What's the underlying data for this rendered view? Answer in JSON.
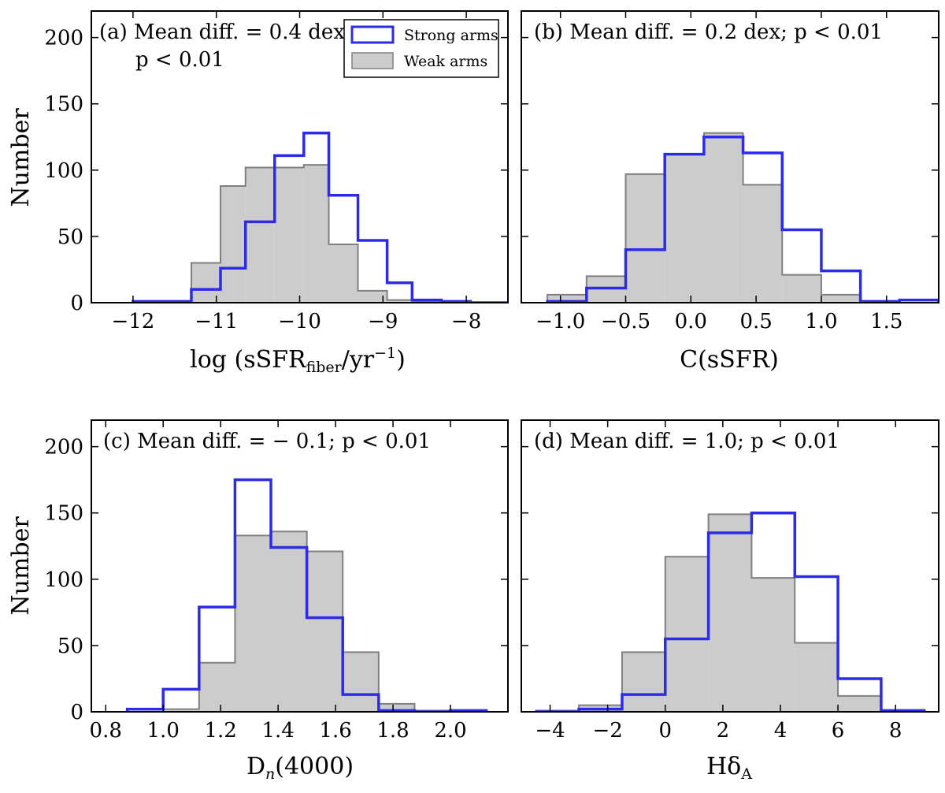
{
  "colors": {
    "strong": "#2b2be8",
    "weak_fill": "#cccccc",
    "weak_edge": "#808080",
    "axes": "#000000"
  },
  "legend": {
    "strong_label": "Strong arms",
    "weak_label": "Weak arms",
    "placement": "top-right of panel (a)"
  },
  "chart_data": [
    {
      "panel": "a",
      "type": "histogram",
      "annotation_line1": "(a) Mean diff. = 0.4 dex;",
      "annotation_line2": "p < 0.01",
      "xlabel": "log (sSFR_fiber / yr^-1)",
      "xlabel_main": "log (sSFR",
      "xlabel_sub": "fiber",
      "xlabel_tail": "/yr",
      "xlabel_sup": "−1",
      "xlabel_close": ")",
      "ylabel": "Number",
      "xlim": [
        -12.5,
        -7.5
      ],
      "ylim": [
        0,
        220
      ],
      "xticks": [
        -12,
        -11,
        -10,
        -9,
        -8
      ],
      "xtick_labels": [
        "−12",
        "−11",
        "−10",
        "−9",
        "−8"
      ],
      "yticks": [
        0,
        50,
        100,
        150,
        200
      ],
      "ytick_labels": [
        "0",
        "50",
        "100",
        "150",
        "200"
      ],
      "bin_edges": [
        -12.0,
        -11.65,
        -11.3,
        -10.95,
        -10.65,
        -10.3,
        -9.95,
        -9.65,
        -9.3,
        -8.95,
        -8.65,
        -8.3,
        -7.95,
        -7.5
      ],
      "series": [
        {
          "name": "Weak arms",
          "values": [
            0,
            0,
            30,
            88,
            102,
            102,
            104,
            44,
            9,
            2,
            1,
            0,
            0
          ]
        },
        {
          "name": "Strong arms",
          "values": [
            1,
            1,
            10,
            26,
            61,
            111,
            128,
            81,
            47,
            15,
            2,
            1,
            0
          ]
        }
      ]
    },
    {
      "panel": "b",
      "type": "histogram",
      "annotation_line1": "(b) Mean diff. = 0.2 dex; p < 0.01",
      "xlabel": "C(sSFR)",
      "ylabel": "",
      "xlim": [
        -1.3,
        1.9
      ],
      "ylim": [
        0,
        220
      ],
      "xticks": [
        -1.0,
        -0.5,
        0.0,
        0.5,
        1.0,
        1.5
      ],
      "xtick_labels": [
        "−1.0",
        "−0.5",
        "0.0",
        "0.5",
        "1.0",
        "1.5"
      ],
      "yticks": [
        0,
        50,
        100,
        150,
        200
      ],
      "bin_edges": [
        -1.1,
        -0.8,
        -0.5,
        -0.2,
        0.1,
        0.4,
        0.7,
        1.0,
        1.3,
        1.6,
        1.9
      ],
      "series": [
        {
          "name": "Weak arms",
          "values": [
            6,
            20,
            97,
            112,
            128,
            89,
            21,
            6,
            0,
            0
          ]
        },
        {
          "name": "Strong arms",
          "values": [
            1,
            11,
            40,
            112,
            125,
            113,
            55,
            24,
            1,
            2
          ]
        }
      ]
    },
    {
      "panel": "c",
      "type": "histogram",
      "annotation_line1": "(c) Mean diff. = − 0.1; p < 0.01",
      "xlabel": "D_n(4000)",
      "xlabel_main": "D",
      "xlabel_sub": "n",
      "xlabel_tail": "(4000)",
      "ylabel": "Number",
      "xlim": [
        0.75,
        2.2
      ],
      "ylim": [
        0,
        220
      ],
      "xticks": [
        0.8,
        1.0,
        1.2,
        1.4,
        1.6,
        1.8,
        2.0
      ],
      "xtick_labels": [
        "0.8",
        "1.0",
        "1.2",
        "1.4",
        "1.6",
        "1.8",
        "2.0"
      ],
      "yticks": [
        0,
        50,
        100,
        150,
        200
      ],
      "ytick_labels": [
        "0",
        "50",
        "100",
        "150",
        "200"
      ],
      "bin_edges": [
        0.875,
        1.0,
        1.125,
        1.25,
        1.375,
        1.5,
        1.625,
        1.75,
        1.875,
        2.0,
        2.125
      ],
      "series": [
        {
          "name": "Weak arms",
          "values": [
            0,
            2,
            37,
            133,
            136,
            121,
            45,
            6,
            1,
            0
          ]
        },
        {
          "name": "Strong arms",
          "values": [
            2,
            17,
            79,
            175,
            124,
            71,
            13,
            1,
            0,
            1
          ]
        }
      ]
    },
    {
      "panel": "d",
      "type": "histogram",
      "annotation_line1": "(d) Mean diff. = 1.0; p < 0.01",
      "xlabel": "Hδ_A",
      "xlabel_main": "Hδ",
      "xlabel_sub": "A",
      "ylabel": "",
      "xlim": [
        -5,
        9.5
      ],
      "ylim": [
        0,
        220
      ],
      "xticks": [
        -4,
        -2,
        0,
        2,
        4,
        6,
        8
      ],
      "xtick_labels": [
        "−4",
        "−2",
        "0",
        "2",
        "4",
        "6",
        "8"
      ],
      "yticks": [
        0,
        50,
        100,
        150,
        200
      ],
      "bin_edges": [
        -4.5,
        -3.0,
        -1.5,
        0.0,
        1.5,
        3.0,
        4.5,
        6.0,
        7.5,
        9.0
      ],
      "series": [
        {
          "name": "Weak arms",
          "values": [
            1,
            5,
            45,
            117,
            149,
            101,
            52,
            12,
            0
          ]
        },
        {
          "name": "Strong arms",
          "values": [
            0,
            2,
            13,
            55,
            135,
            150,
            102,
            25,
            1
          ]
        }
      ]
    }
  ]
}
